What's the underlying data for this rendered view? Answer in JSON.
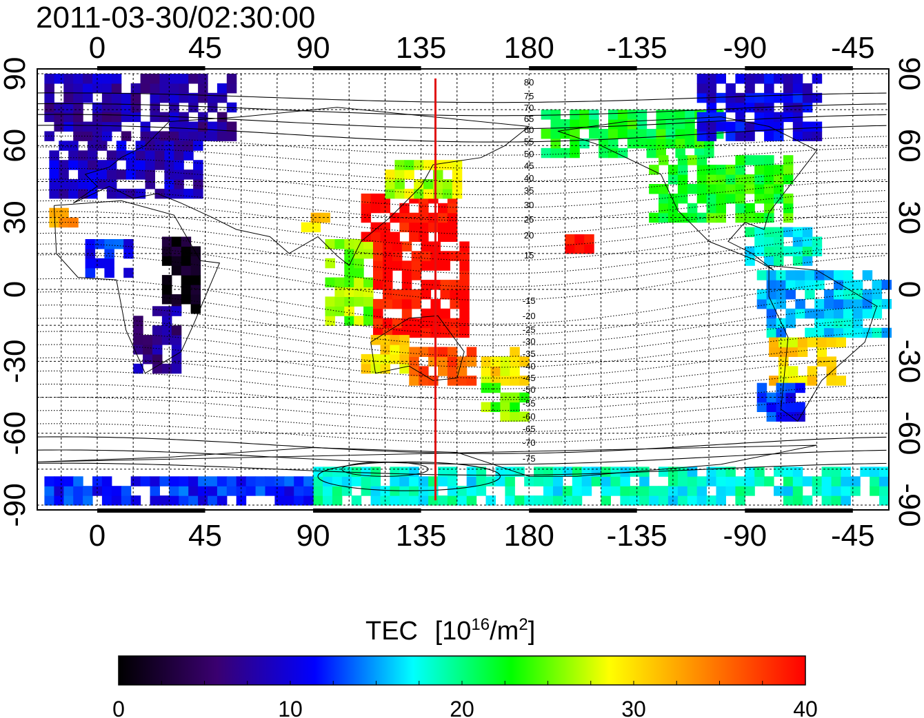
{
  "timestamp": "2011-03-30/02:30:00",
  "map": {
    "lon_ticks": [
      "0",
      "45",
      "90",
      "135",
      "180",
      "-135",
      "-90",
      "-45"
    ],
    "lon_values": [
      0,
      45,
      90,
      135,
      180,
      225,
      270,
      315
    ],
    "lat_ticks": [
      "90",
      "60",
      "30",
      "0",
      "-30",
      "-60",
      "-90"
    ],
    "lat_values": [
      90,
      60,
      30,
      0,
      -30,
      -60,
      -90
    ],
    "lon_range": [
      -25,
      330
    ],
    "lat_range": [
      -92,
      92
    ],
    "meridian_marker": {
      "lon": 141,
      "color": "#e01010"
    },
    "mag_lat_labels_north": [
      "80",
      "75",
      "70",
      "65",
      "60",
      "55",
      "50",
      "45",
      "40",
      "35",
      "30",
      "25",
      "20",
      "15"
    ],
    "mag_lat_labels_south": [
      "-15",
      "-20",
      "-25",
      "-30",
      "-35",
      "-40",
      "-45",
      "-50",
      "-55",
      "-60",
      "-65",
      "-70",
      "-75"
    ]
  },
  "colorbar": {
    "title": "TEC",
    "unit_base": "10",
    "unit_exp": "16",
    "unit_rest": "/m",
    "unit_rest_exp": "2",
    "ticks": [
      "0",
      "10",
      "20",
      "30",
      "40"
    ],
    "min": 0,
    "max": 40,
    "stops": [
      "#000000",
      "#3a0070",
      "#0000ff",
      "#00ffff",
      "#00ff00",
      "#ffff00",
      "#ff8000",
      "#ff0000"
    ]
  },
  "tec_regions": [
    {
      "lon": [
        -22,
        55
      ],
      "lat": [
        62,
        88
      ],
      "tec": 8
    },
    {
      "lon": [
        -20,
        42
      ],
      "lat": [
        38,
        62
      ],
      "tec": 9
    },
    {
      "lon": [
        -20,
        -8
      ],
      "lat": [
        26,
        33
      ],
      "tec": 33
    },
    {
      "lon": [
        -5,
        15
      ],
      "lat": [
        5,
        18
      ],
      "tec": 12
    },
    {
      "lon": [
        27,
        40
      ],
      "lat": [
        -10,
        22
      ],
      "tec": 1
    },
    {
      "lon": [
        15,
        35
      ],
      "lat": [
        -35,
        -10
      ],
      "tec": 7
    },
    {
      "lon": [
        85,
        100
      ],
      "lat": [
        24,
        32
      ],
      "tec": 30
    },
    {
      "lon": [
        95,
        115
      ],
      "lat": [
        -15,
        20
      ],
      "tec": 26
    },
    {
      "lon": [
        110,
        150
      ],
      "lat": [
        20,
        38
      ],
      "tec": 40
    },
    {
      "lon": [
        120,
        150
      ],
      "lat": [
        38,
        52
      ],
      "tec": 27
    },
    {
      "lon": [
        115,
        155
      ],
      "lat": [
        -20,
        18
      ],
      "tec": 40
    },
    {
      "lon": [
        110,
        130
      ],
      "lat": [
        -35,
        -20
      ],
      "tec": 30
    },
    {
      "lon": [
        130,
        155
      ],
      "lat": [
        -40,
        -25
      ],
      "tec": 36
    },
    {
      "lon": [
        160,
        180
      ],
      "lat": [
        -40,
        -25
      ],
      "tec": 30
    },
    {
      "lon": [
        160,
        180
      ],
      "lat": [
        -55,
        -40
      ],
      "tec": 25
    },
    {
      "lon": [
        185,
        260
      ],
      "lat": [
        55,
        75
      ],
      "tec": 22
    },
    {
      "lon": [
        230,
        290
      ],
      "lat": [
        28,
        55
      ],
      "tec": 23
    },
    {
      "lon": [
        250,
        300
      ],
      "lat": [
        62,
        88
      ],
      "tec": 10
    },
    {
      "lon": [
        270,
        300
      ],
      "lat": [
        10,
        25
      ],
      "tec": 18
    },
    {
      "lon": [
        275,
        330
      ],
      "lat": [
        -20,
        5
      ],
      "tec": 16
    },
    {
      "lon": [
        280,
        310
      ],
      "lat": [
        -40,
        -20
      ],
      "tec": 30
    },
    {
      "lon": [
        275,
        295
      ],
      "lat": [
        -55,
        -40
      ],
      "tec": 12
    },
    {
      "lon": [
        90,
        330
      ],
      "lat": [
        -90,
        -76
      ],
      "tec": 18
    },
    {
      "lon": [
        -22,
        90
      ],
      "lat": [
        -90,
        -80
      ],
      "tec": 12
    },
    {
      "lon": [
        195,
        205
      ],
      "lat": [
        15,
        22
      ],
      "tec": 40
    }
  ],
  "colors": {
    "frame": "#000000",
    "grid": "#000000",
    "background": "#ffffff"
  }
}
